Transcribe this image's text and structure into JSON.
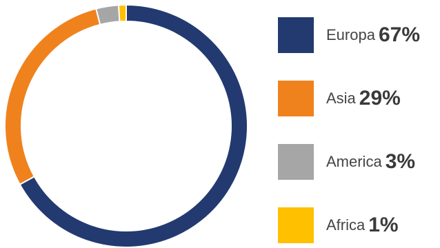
{
  "chart_data": {
    "type": "pie",
    "donut": true,
    "title": "",
    "legend_position": "right",
    "categories": [
      "Europa",
      "Asia",
      "America",
      "Africa"
    ],
    "values": [
      67,
      29,
      3,
      1
    ],
    "labels": [
      "67%",
      "29%",
      "3%",
      "1%"
    ],
    "colors": [
      "#223a70",
      "#f0821e",
      "#a6a6a6",
      "#ffc000"
    ]
  }
}
